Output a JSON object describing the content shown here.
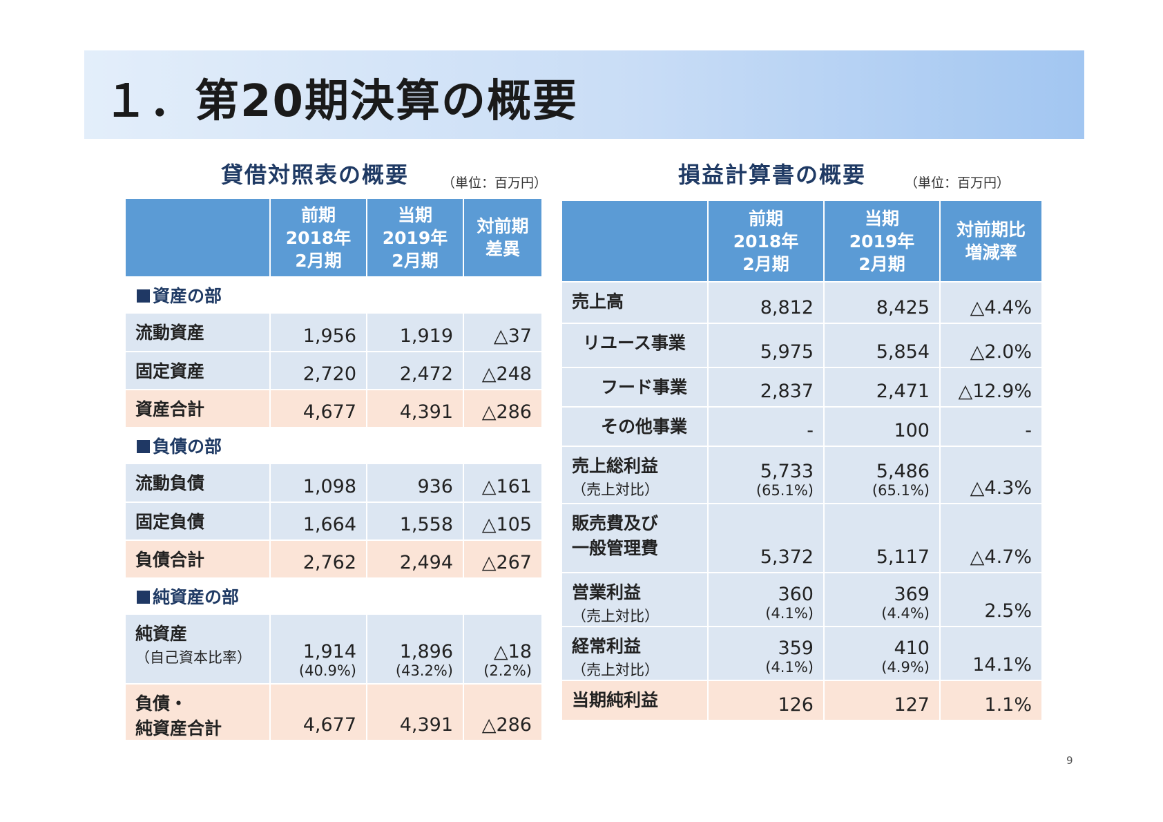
{
  "title": "１．第20期決算の概要",
  "page_number": "9",
  "balance_sheet": {
    "heading": "貸借対照表の概要",
    "unit": "（単位：百万円）",
    "headers": [
      "",
      "前期\n2018年\n2月期",
      "当期\n2019年\n2月期",
      "対前期\n差異"
    ],
    "sections": [
      {
        "label": "資産の部",
        "rows": [
          {
            "label": "流動資産",
            "prev": "1,956",
            "curr": "1,919",
            "diff": "△37",
            "style": "b"
          },
          {
            "label": "固定資産",
            "prev": "2,720",
            "curr": "2,472",
            "diff": "△248",
            "style": "b"
          },
          {
            "label": "資産合計",
            "prev": "4,677",
            "curr": "4,391",
            "diff": "△286",
            "style": "o"
          }
        ]
      },
      {
        "label": "負債の部",
        "rows": [
          {
            "label": "流動負債",
            "prev": "1,098",
            "curr": "936",
            "diff": "△161",
            "style": "b"
          },
          {
            "label": "固定負債",
            "prev": "1,664",
            "curr": "1,558",
            "diff": "△105",
            "style": "b"
          },
          {
            "label": "負債合計",
            "prev": "2,762",
            "curr": "2,494",
            "diff": "△267",
            "style": "o"
          }
        ]
      },
      {
        "label": "純資産の部",
        "rows": [
          {
            "label": "純資産",
            "sub": "（自己資本比率）",
            "prev": "1,914",
            "prev_pct": "(40.9%)",
            "curr": "1,896",
            "curr_pct": "(43.2%)",
            "diff": "△18",
            "diff_pct": "(2.2%)",
            "style": "b"
          },
          {
            "label": "負債・\n純資産合計",
            "prev": "4,677",
            "curr": "4,391",
            "diff": "△286",
            "style": "o"
          }
        ]
      }
    ]
  },
  "income_statement": {
    "heading": "損益計算書の概要",
    "unit": "（単位：百万円）",
    "headers": [
      "",
      "前期\n2018年\n2月期",
      "当期\n2019年\n2月期",
      "対前期比\n増減率"
    ],
    "rows": [
      {
        "label": "売上高",
        "prev": "8,812",
        "curr": "8,425",
        "rate": "△4.4%",
        "style": "b",
        "indent": 0
      },
      {
        "label": "リユース事業",
        "prev": "5,975",
        "curr": "5,854",
        "rate": "△2.0%",
        "style": "b",
        "indent": 1
      },
      {
        "label": "フード事業",
        "prev": "2,837",
        "curr": "2,471",
        "rate": "△12.9%",
        "style": "b",
        "indent": 2
      },
      {
        "label": "その他事業",
        "prev": "-",
        "curr": "100",
        "rate": "-",
        "style": "b",
        "indent": 2
      },
      {
        "label": "売上総利益",
        "sub": "（売上対比）",
        "prev": "5,733",
        "prev_pct": "(65.1%)",
        "curr": "5,486",
        "curr_pct": "(65.1%)",
        "rate": "△4.3%",
        "style": "b",
        "indent": 0
      },
      {
        "label": "販売費及び\n一般管理費",
        "prev": "5,372",
        "curr": "5,117",
        "rate": "△4.7%",
        "style": "b",
        "indent": 0
      },
      {
        "label": "営業利益",
        "sub": "（売上対比）",
        "prev": "360",
        "prev_pct": "(4.1%)",
        "curr": "369",
        "curr_pct": "(4.4%)",
        "rate": "2.5%",
        "style": "b",
        "indent": 0
      },
      {
        "label": "経常利益",
        "sub": "（売上対比）",
        "prev": "359",
        "prev_pct": "(4.1%)",
        "curr": "410",
        "curr_pct": "(4.9%)",
        "rate": "14.1%",
        "style": "b",
        "indent": 0
      },
      {
        "label": "当期純利益",
        "prev": "126",
        "curr": "127",
        "rate": "1.1%",
        "style": "o",
        "indent": 0
      }
    ]
  }
}
